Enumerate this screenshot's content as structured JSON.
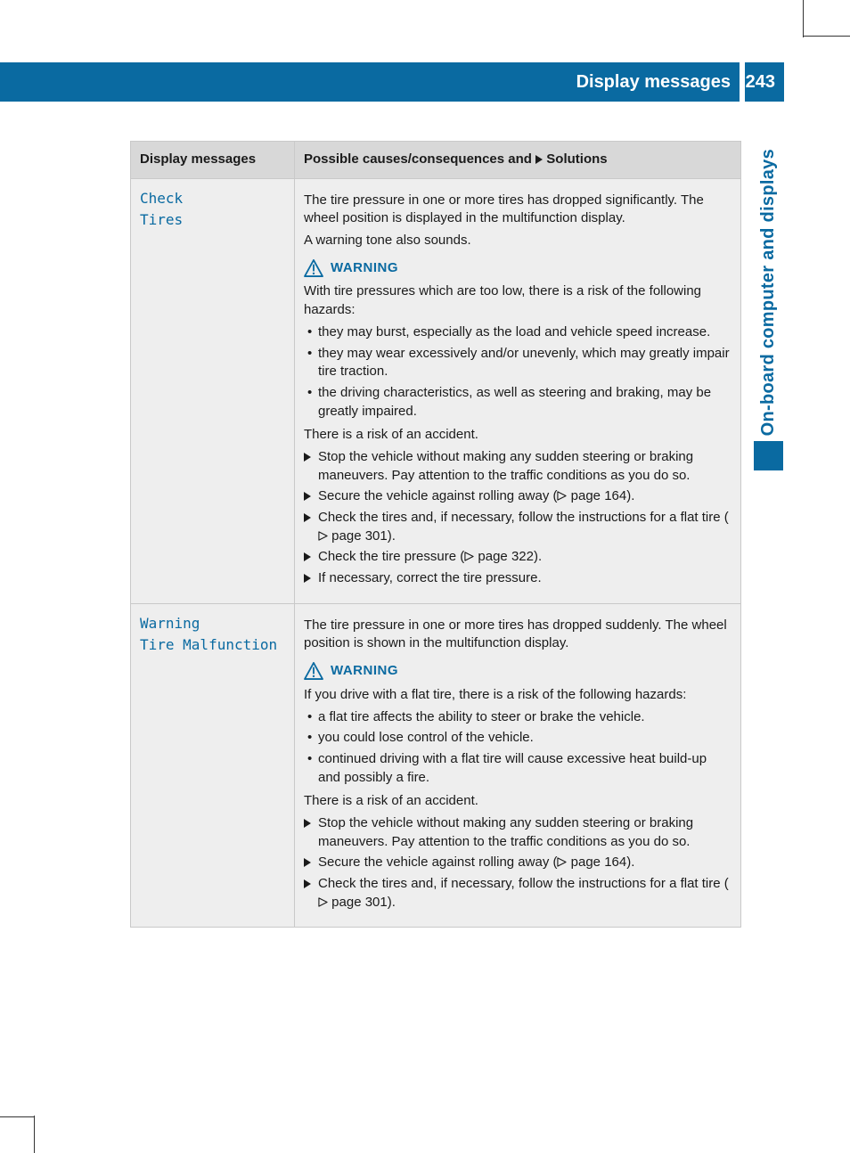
{
  "colors": {
    "brand_blue": "#0a6aa1",
    "header_gray": "#d8d8d8",
    "cell_gray": "#eeeeee",
    "border_gray": "#c9c9c9",
    "text": "#1a1a1a",
    "white": "#ffffff"
  },
  "typography": {
    "body_font": "Arial, Helvetica, sans-serif",
    "body_size_pt": 11,
    "title_size_pt": 15,
    "mono_font": "monospace"
  },
  "header": {
    "title": "Display messages",
    "page_number": "243"
  },
  "side_tab": {
    "label": "On-board computer and displays"
  },
  "table": {
    "headers": {
      "col1": "Display messages",
      "col2_prefix": "Possible causes/consequences and ",
      "col2_suffix": " Solutions"
    },
    "rows": [
      {
        "display": "Check\nTires",
        "intro": [
          "The tire pressure in one or more tires has dropped significantly. The wheel position is displayed in the multifunction display.",
          "A warning tone also sounds."
        ],
        "warning": {
          "label": "WARNING",
          "lead": "With tire pressures which are too low, there is a risk of the following hazards:",
          "bullets": [
            "they may burst, especially as the load and vehicle speed increase.",
            "they may wear excessively and/or unevenly, which may greatly impair tire traction.",
            "the driving characteristics, as well as steering and braking, may be greatly impaired."
          ],
          "tail": "There is a risk of an accident."
        },
        "actions": [
          {
            "text": "Stop the vehicle without making any sudden steering or braking maneuvers. Pay attention to the traffic conditions as you do so."
          },
          {
            "text": "Secure the vehicle against rolling away (",
            "page_ref": "164",
            "tail": ")."
          },
          {
            "text": "Check the tires and, if necessary, follow the instructions for a flat tire (",
            "page_ref": "301",
            "tail": ")."
          },
          {
            "text": "Check the tire pressure (",
            "page_ref": "322",
            "tail": ")."
          },
          {
            "text": "If necessary, correct the tire pressure."
          }
        ]
      },
      {
        "display": "Warning\nTire Malfunction",
        "intro": [
          "The tire pressure in one or more tires has dropped suddenly. The wheel position is shown in the multifunction display."
        ],
        "warning": {
          "label": "WARNING",
          "lead": "If you drive with a flat tire, there is a risk of the following hazards:",
          "bullets": [
            "a flat tire affects the ability to steer or brake the vehicle.",
            "you could lose control of the vehicle.",
            "continued driving with a flat tire will cause excessive heat build-up and possibly a fire."
          ],
          "tail": "There is a risk of an accident."
        },
        "actions": [
          {
            "text": "Stop the vehicle without making any sudden steering or braking maneuvers. Pay attention to the traffic conditions as you do so."
          },
          {
            "text": "Secure the vehicle against rolling away (",
            "page_ref": "164",
            "tail": ")."
          },
          {
            "text": "Check the tires and, if necessary, follow the instructions for a flat tire (",
            "page_ref": "301",
            "tail": ")."
          }
        ]
      }
    ]
  },
  "page_ref_label": "page "
}
